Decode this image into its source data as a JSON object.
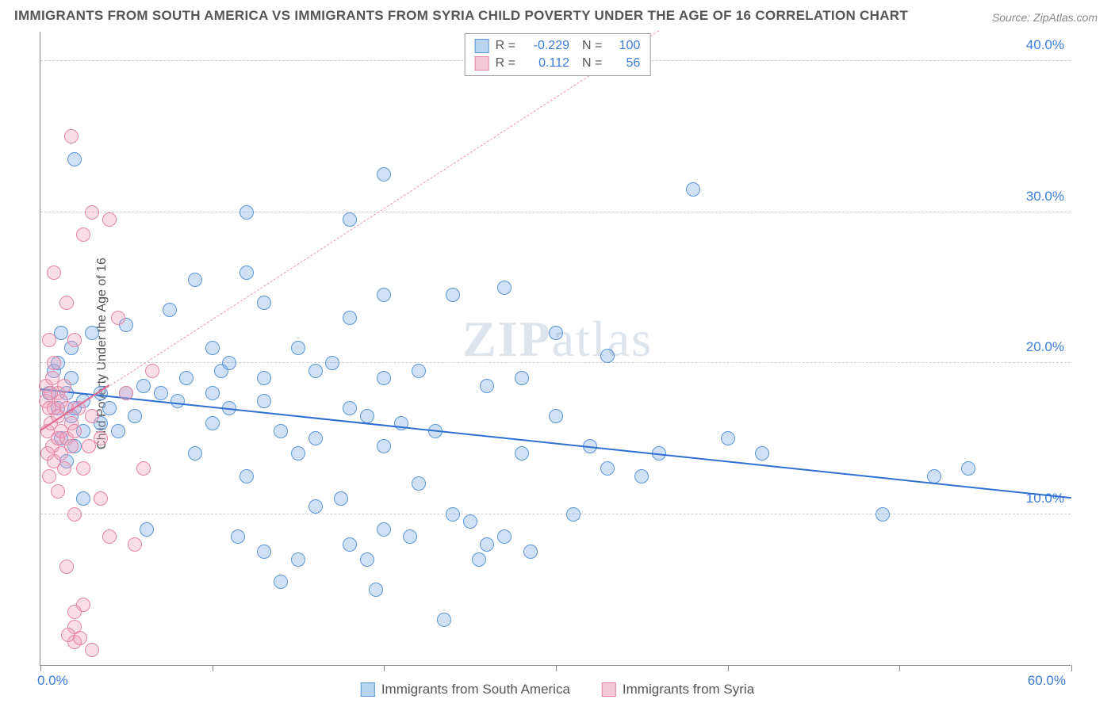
{
  "title": "IMMIGRANTS FROM SOUTH AMERICA VS IMMIGRANTS FROM SYRIA CHILD POVERTY UNDER THE AGE OF 16 CORRELATION CHART",
  "source_label": "Source: ZipAtlas.com",
  "y_axis_label": "Child Poverty Under the Age of 16",
  "watermark_a": "ZIP",
  "watermark_b": "atlas",
  "chart": {
    "type": "scatter",
    "xlim": [
      0,
      60
    ],
    "ylim": [
      0,
      42
    ],
    "x_ticks": [
      0,
      10,
      20,
      30,
      40,
      50,
      60
    ],
    "y_ticks": [
      10,
      20,
      30,
      40
    ],
    "x_tick_labels": {
      "min": "0.0%",
      "max": "60.0%"
    },
    "y_tick_labels": [
      "10.0%",
      "20.0%",
      "30.0%",
      "40.0%"
    ],
    "background_color": "#ffffff",
    "grid_color": "#cccccc",
    "axis_color": "#888888",
    "tick_label_color": "#3b7dd8",
    "marker_radius": 9,
    "marker_stroke_width": 1.5,
    "series": [
      {
        "name": "Immigrants from South America",
        "fill_color": "rgba(120,170,230,0.35)",
        "stroke_color": "#5a96d6",
        "swatch_fill": "#b8d4f0",
        "swatch_stroke": "#5a96d6",
        "R": "-0.229",
        "N": "100",
        "trend": {
          "x1": 0,
          "y1": 18.2,
          "x2": 60,
          "y2": 11.0,
          "color": "#2e6fd0",
          "width": 2.5,
          "dash": "solid"
        },
        "points": [
          [
            0.5,
            18
          ],
          [
            0.8,
            19.5
          ],
          [
            1,
            17
          ],
          [
            1,
            20
          ],
          [
            1.2,
            15
          ],
          [
            1.2,
            22
          ],
          [
            1.5,
            13.5
          ],
          [
            1.5,
            18
          ],
          [
            1.8,
            16.5
          ],
          [
            1.8,
            21
          ],
          [
            2,
            17
          ],
          [
            2,
            33.5
          ],
          [
            2,
            14.5
          ],
          [
            2.5,
            15.5
          ],
          [
            2.5,
            17.5
          ],
          [
            2.5,
            11
          ],
          [
            3,
            22
          ],
          [
            3.5,
            18
          ],
          [
            3.5,
            16
          ],
          [
            4,
            17
          ],
          [
            4.5,
            15.5
          ],
          [
            5,
            22.5
          ],
          [
            5,
            18
          ],
          [
            5.5,
            16.5
          ],
          [
            6,
            18.5
          ],
          [
            6.2,
            9
          ],
          [
            7,
            18
          ],
          [
            7.5,
            23.5
          ],
          [
            8,
            17.5
          ],
          [
            8.5,
            19
          ],
          [
            9,
            25.5
          ],
          [
            9,
            14
          ],
          [
            10,
            18
          ],
          [
            10,
            16
          ],
          [
            10,
            21
          ],
          [
            10.5,
            19.5
          ],
          [
            11,
            17
          ],
          [
            11,
            20
          ],
          [
            11.5,
            8.5
          ],
          [
            12,
            30
          ],
          [
            12,
            12.5
          ],
          [
            12,
            26
          ],
          [
            13,
            24
          ],
          [
            13,
            17.5
          ],
          [
            13,
            19
          ],
          [
            13,
            7.5
          ],
          [
            14,
            15.5
          ],
          [
            14,
            5.5
          ],
          [
            15,
            14
          ],
          [
            15,
            21
          ],
          [
            15,
            7
          ],
          [
            16,
            10.5
          ],
          [
            16,
            19.5
          ],
          [
            16,
            15
          ],
          [
            17,
            20
          ],
          [
            17.5,
            11
          ],
          [
            18,
            23
          ],
          [
            18,
            17
          ],
          [
            18,
            29.5
          ],
          [
            18,
            8
          ],
          [
            19,
            16.5
          ],
          [
            19,
            7
          ],
          [
            19.5,
            5
          ],
          [
            20,
            32.5
          ],
          [
            20,
            19
          ],
          [
            20,
            14.5
          ],
          [
            20,
            9
          ],
          [
            20,
            24.5
          ],
          [
            21,
            16
          ],
          [
            21.5,
            8.5
          ],
          [
            22,
            12
          ],
          [
            22,
            19.5
          ],
          [
            23,
            15.5
          ],
          [
            23.5,
            3
          ],
          [
            24,
            24.5
          ],
          [
            24,
            10
          ],
          [
            25,
            9.5
          ],
          [
            25.5,
            7
          ],
          [
            26,
            8
          ],
          [
            26,
            18.5
          ],
          [
            27,
            25
          ],
          [
            27,
            8.5
          ],
          [
            28,
            19
          ],
          [
            28,
            14
          ],
          [
            28.5,
            7.5
          ],
          [
            30,
            16.5
          ],
          [
            30,
            22
          ],
          [
            31,
            10
          ],
          [
            32,
            14.5
          ],
          [
            33,
            13
          ],
          [
            33,
            20.5
          ],
          [
            35,
            12.5
          ],
          [
            36,
            14
          ],
          [
            38,
            31.5
          ],
          [
            40,
            15
          ],
          [
            42,
            14
          ],
          [
            49,
            10
          ],
          [
            52,
            12.5
          ],
          [
            54,
            13
          ],
          [
            1.8,
            19
          ]
        ]
      },
      {
        "name": "Immigrants from Syria",
        "fill_color": "rgba(240,160,185,0.35)",
        "stroke_color": "#e584a5",
        "swatch_fill": "#f5c8d8",
        "swatch_stroke": "#e584a5",
        "R": "0.112",
        "N": "56",
        "trend": {
          "x1": 0,
          "y1": 15.5,
          "x2": 36,
          "y2": 42,
          "color": "#e896b5",
          "width": 1.5,
          "dash": "dashed"
        },
        "trend_solid": {
          "x1": 0,
          "y1": 15.5,
          "x2": 4,
          "y2": 18.5,
          "color": "#e06a94",
          "width": 2.5
        },
        "points": [
          [
            0.3,
            17.5
          ],
          [
            0.3,
            18.5
          ],
          [
            0.4,
            14
          ],
          [
            0.4,
            15.5
          ],
          [
            0.5,
            17
          ],
          [
            0.5,
            21.5
          ],
          [
            0.5,
            12.5
          ],
          [
            0.6,
            16
          ],
          [
            0.6,
            18
          ],
          [
            0.7,
            14.5
          ],
          [
            0.7,
            19
          ],
          [
            0.8,
            13.5
          ],
          [
            0.8,
            17
          ],
          [
            0.8,
            20
          ],
          [
            0.8,
            26
          ],
          [
            1,
            15
          ],
          [
            1,
            18
          ],
          [
            1,
            11.5
          ],
          [
            1,
            16.5
          ],
          [
            1.2,
            17.5
          ],
          [
            1.2,
            14
          ],
          [
            1.2,
            15.5
          ],
          [
            1.4,
            13
          ],
          [
            1.4,
            18.5
          ],
          [
            1.5,
            15
          ],
          [
            1.5,
            17
          ],
          [
            1.5,
            24
          ],
          [
            1.5,
            6.5
          ],
          [
            1.8,
            14.5
          ],
          [
            1.8,
            16
          ],
          [
            1.8,
            35
          ],
          [
            2,
            15.5
          ],
          [
            2,
            21.5
          ],
          [
            2,
            10
          ],
          [
            2,
            1.5
          ],
          [
            2,
            2.5
          ],
          [
            2.2,
            17
          ],
          [
            2.5,
            13
          ],
          [
            2.5,
            28.5
          ],
          [
            2.5,
            4
          ],
          [
            2.8,
            14.5
          ],
          [
            3,
            16.5
          ],
          [
            3,
            30
          ],
          [
            3,
            1
          ],
          [
            3.5,
            11
          ],
          [
            3.5,
            15
          ],
          [
            4,
            29.5
          ],
          [
            4,
            8.5
          ],
          [
            4.5,
            23
          ],
          [
            5,
            18
          ],
          [
            5.5,
            8
          ],
          [
            6,
            13
          ],
          [
            6.5,
            19.5
          ],
          [
            2,
            3.5
          ],
          [
            1.6,
            2
          ],
          [
            2.3,
            1.8
          ]
        ]
      }
    ]
  },
  "legend_stats_labels": {
    "R": "R =",
    "N": "N ="
  },
  "bottom_legend": [
    "Immigrants from South America",
    "Immigrants from Syria"
  ]
}
